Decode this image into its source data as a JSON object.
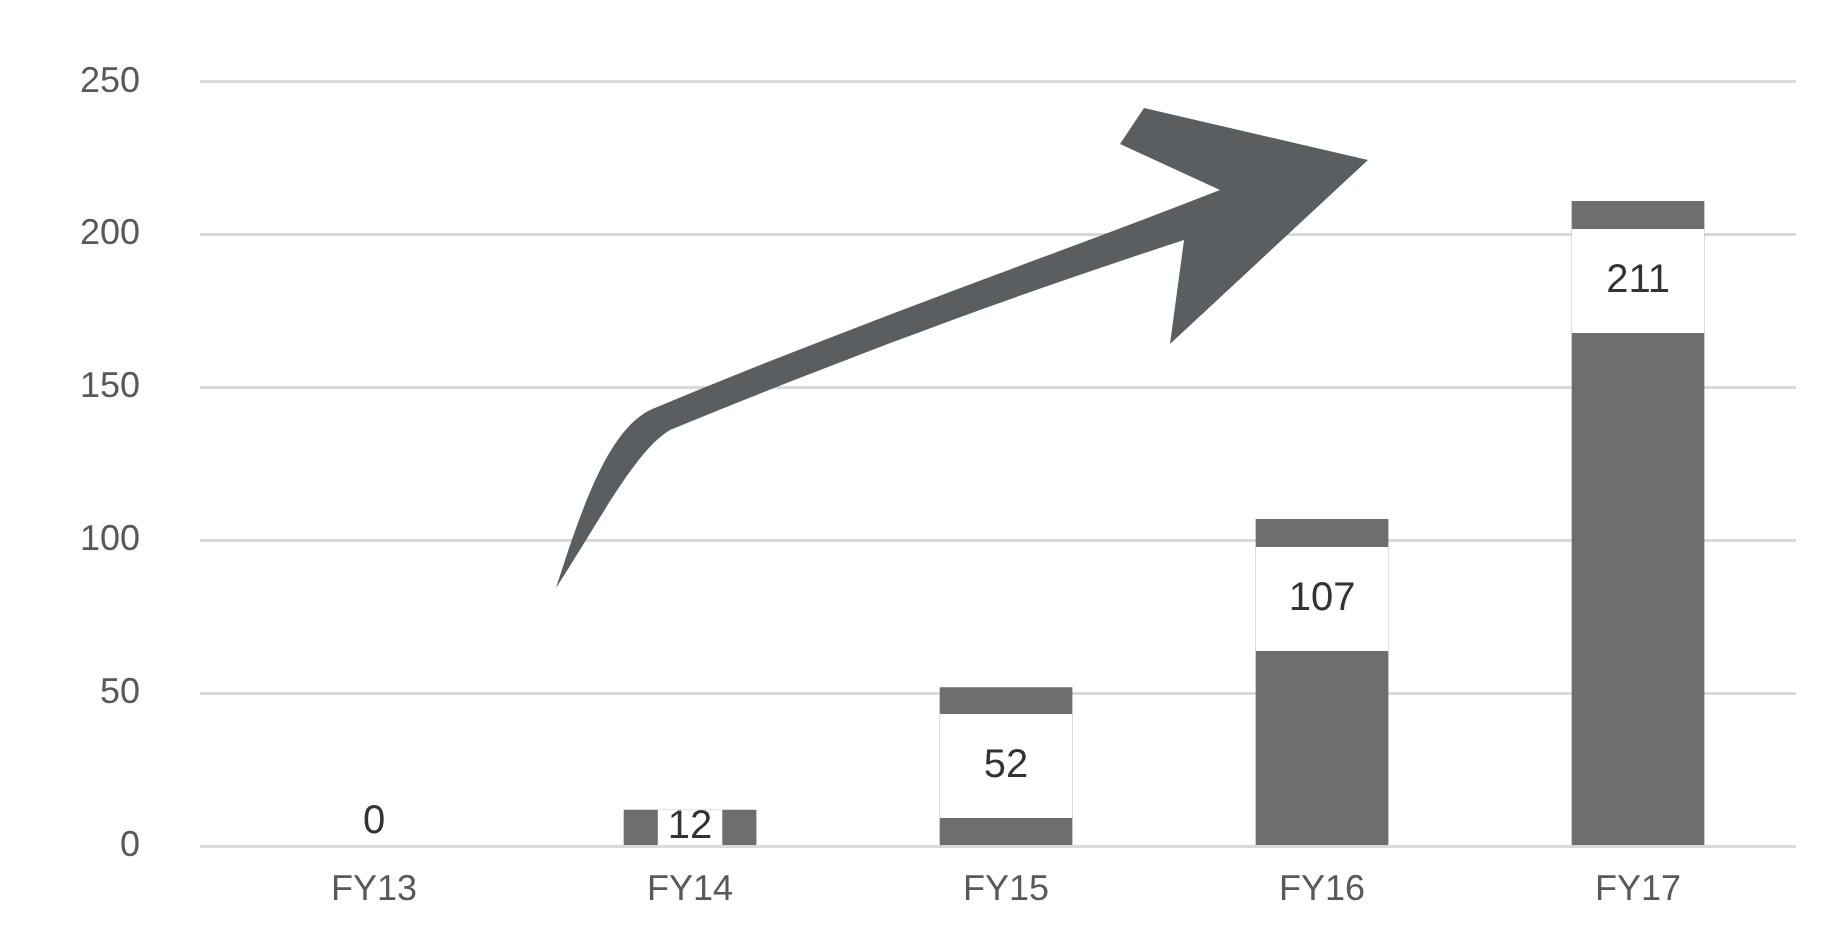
{
  "chart_data": {
    "type": "bar",
    "categories": [
      "FY13",
      "FY14",
      "FY15",
      "FY16",
      "FY17"
    ],
    "values": [
      0,
      12,
      52,
      107,
      211
    ],
    "color": "#6e6e6e",
    "ylim": [
      0,
      250
    ],
    "yticks": [
      0,
      50,
      100,
      150,
      200,
      250
    ],
    "grid": "y",
    "data_labels": true
  }
}
